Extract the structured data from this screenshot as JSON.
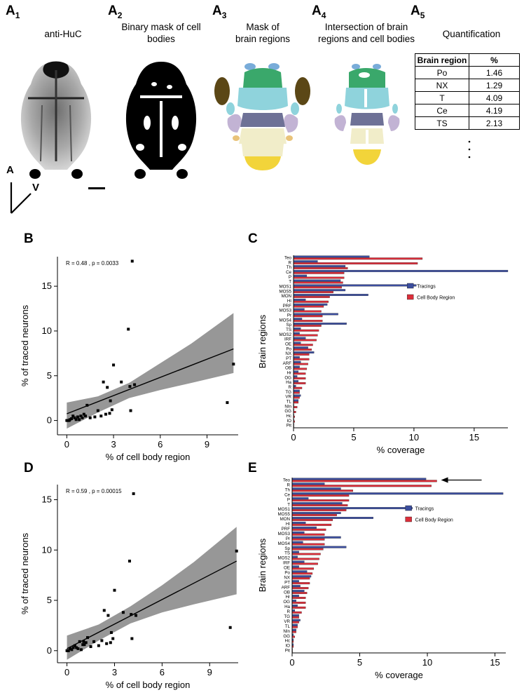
{
  "panelA": {
    "labels": [
      "A",
      "A",
      "A",
      "A",
      "A"
    ],
    "subscripts": [
      "1",
      "2",
      "3",
      "4",
      "5"
    ],
    "titles": [
      [
        "anti-HuC"
      ],
      [
        "Binary mask of cell",
        "bodies"
      ],
      [
        "Mask of",
        "brain regions"
      ],
      [
        "Intersection of brain",
        "regions and cell bodies"
      ],
      [
        "Quantification"
      ]
    ],
    "axis_labels": {
      "anterior": "A",
      "ventral": "V"
    },
    "table": {
      "headers": [
        "Brain region",
        "%"
      ],
      "rows": [
        [
          "Po",
          "1.46"
        ],
        [
          "NX",
          "1.29"
        ],
        [
          "T",
          "4.09"
        ],
        [
          "Ce",
          "4.19"
        ],
        [
          "TS",
          "2.13"
        ]
      ]
    },
    "colors": {
      "green": "#3aa86b",
      "cyan": "#8fd3dc",
      "blue": "#79acd9",
      "navy": "#6e7196",
      "lavender": "#c2b3d4",
      "yellow": "#f2d43a",
      "cream": "#f1edc9",
      "brown": "#5b4716",
      "orange": "#e9c37a"
    }
  },
  "panelB": {
    "label": "B",
    "chart_data": {
      "type": "scatter",
      "title": "",
      "annotation": "R = 0.48 , p = 0.0033",
      "xlabel": "% of cell body region",
      "ylabel": "% of traced neurons",
      "xlim": [
        -0.6,
        11.0
      ],
      "ylim": [
        -1.6,
        18.3
      ],
      "xticks": [
        0,
        3,
        6,
        9
      ],
      "yticks": [
        0,
        5,
        10,
        15
      ],
      "x": [
        0.0,
        0.05,
        0.1,
        0.15,
        0.2,
        0.3,
        0.4,
        0.5,
        0.6,
        0.7,
        0.8,
        0.9,
        1.0,
        1.1,
        1.2,
        1.3,
        1.5,
        1.8,
        2.0,
        2.2,
        2.35,
        2.5,
        2.6,
        2.75,
        2.8,
        2.9,
        3.0,
        3.5,
        3.95,
        4.05,
        4.1,
        4.2,
        4.35,
        10.3,
        10.7
      ],
      "y": [
        0.0,
        0.0,
        0.0,
        0.0,
        0.1,
        0.2,
        0.5,
        0.3,
        0.1,
        0.4,
        0.1,
        0.5,
        0.3,
        0.7,
        0.5,
        1.7,
        0.3,
        0.4,
        1.1,
        0.5,
        4.3,
        0.7,
        3.7,
        0.8,
        2.2,
        1.2,
        6.2,
        4.3,
        10.2,
        3.8,
        1.1,
        17.8,
        4.0,
        2.0,
        6.3
      ],
      "fit": {
        "x": [
          0,
          10.7
        ],
        "y": [
          0.75,
          8.0
        ]
      },
      "ci_upper": {
        "x": [
          0,
          2,
          4,
          6,
          8,
          10.7
        ],
        "y": [
          2.0,
          2.7,
          4.2,
          6.4,
          8.6,
          12.0
        ]
      },
      "ci_lower": {
        "x": [
          0,
          2,
          4,
          6,
          8,
          10.7
        ],
        "y": [
          -0.9,
          0.9,
          2.5,
          3.4,
          4.2,
          5.3
        ]
      }
    }
  },
  "panelC": {
    "label": "C",
    "chart_data": {
      "type": "bar",
      "orientation": "horizontal",
      "xlabel": "% coverage",
      "ylabel": "Brain regions",
      "xlim": [
        0,
        17.8
      ],
      "xticks": [
        0,
        5,
        10,
        15
      ],
      "categories": [
        "Teo",
        "R",
        "Th",
        "Ce",
        "P",
        "T",
        "MOS1",
        "MOS5",
        "MON",
        "HI",
        "PRF",
        "MOS3",
        "Pr",
        "MOS4",
        "Sp",
        "TS",
        "MOS2",
        "IRF",
        "OE",
        "Po",
        "NX",
        "PT",
        "ARF",
        "OB",
        "Hr",
        "OG",
        "Ha",
        "R",
        "TG",
        "VR",
        "TL",
        "NIn",
        "GG",
        "Hc",
        "IO",
        "Pit"
      ],
      "series": [
        {
          "name": "Tracings",
          "color": "#3c4e9e",
          "values": [
            6.3,
            2.0,
            4.3,
            17.8,
            1.1,
            3.9,
            10.2,
            4.3,
            6.2,
            1.0,
            2.8,
            0.9,
            3.7,
            0.7,
            4.4,
            0.6,
            0.5,
            1.0,
            0.6,
            1.2,
            1.7,
            0.5,
            0.6,
            0.5,
            0.4,
            0.3,
            0.4,
            0.2,
            0.5,
            0.6,
            0.4,
            0.0,
            0.0,
            0.0,
            0.0,
            0.0
          ]
        },
        {
          "name": "Cell Body Region",
          "color": "#dc2e3a",
          "values": [
            10.7,
            10.3,
            4.5,
            4.2,
            4.2,
            4.1,
            4.0,
            3.3,
            3.0,
            2.9,
            2.5,
            2.3,
            2.4,
            2.4,
            2.3,
            2.1,
            2.0,
            1.9,
            1.6,
            1.5,
            1.3,
            1.3,
            1.2,
            1.1,
            1.0,
            1.0,
            1.0,
            0.7,
            0.5,
            0.5,
            0.4,
            0.3,
            0.2,
            0.1,
            0.1,
            0.0
          ]
        }
      ],
      "legend": "top-right"
    }
  },
  "panelD": {
    "label": "D",
    "chart_data": {
      "type": "scatter",
      "title": "",
      "annotation": "R = 0.59 , p = 0.00015",
      "xlabel": "% of cell body region",
      "ylabel": "% of traced neurons",
      "xlim": [
        -0.6,
        10.8
      ],
      "ylim": [
        -1.2,
        16.5
      ],
      "xticks": [
        0,
        3,
        6,
        9
      ],
      "yticks": [
        0,
        5,
        10,
        15
      ],
      "x": [
        0.0,
        0.05,
        0.1,
        0.2,
        0.3,
        0.4,
        0.5,
        0.6,
        0.7,
        0.8,
        0.9,
        1.0,
        1.05,
        1.1,
        1.2,
        1.3,
        1.5,
        1.7,
        2.0,
        2.2,
        2.35,
        2.5,
        2.6,
        2.75,
        2.8,
        2.9,
        3.0,
        3.55,
        3.95,
        4.05,
        4.1,
        4.2,
        4.35,
        10.3,
        10.7
      ],
      "y": [
        0.0,
        0.0,
        0.0,
        0.2,
        0.1,
        0.3,
        0.5,
        0.3,
        0.2,
        0.9,
        0.1,
        0.6,
        0.9,
        0.6,
        0.8,
        1.3,
        0.4,
        0.9,
        0.5,
        1.0,
        4.0,
        0.7,
        3.5,
        0.8,
        1.8,
        1.2,
        6.0,
        3.8,
        8.9,
        3.6,
        1.2,
        15.6,
        3.5,
        2.3,
        9.9
      ],
      "fit": {
        "x": [
          0,
          10.7
        ],
        "y": [
          0.2,
          8.9
        ]
      },
      "ci_upper": {
        "x": [
          0,
          2,
          4,
          6,
          8,
          10.7
        ],
        "y": [
          1.5,
          2.6,
          4.4,
          6.5,
          8.8,
          12.3
        ]
      },
      "ci_lower": {
        "x": [
          0,
          2,
          4,
          6,
          8,
          10.7
        ],
        "y": [
          -0.9,
          1.0,
          2.7,
          3.8,
          4.6,
          5.6
        ]
      }
    }
  },
  "panelE": {
    "label": "E",
    "chart_data": {
      "type": "bar",
      "orientation": "horizontal",
      "xlabel": "% coverage",
      "ylabel": "Brain regions",
      "xlim": [
        0,
        15.8
      ],
      "xticks": [
        0,
        5,
        10,
        15
      ],
      "categories": [
        "Teo",
        "R",
        "Th",
        "Ce",
        "P",
        "T",
        "MOS1",
        "MOS5",
        "MON",
        "HI",
        "PRF",
        "MOS3",
        "Pr",
        "MOS4",
        "Sp",
        "TS",
        "MOS2",
        "IRF",
        "OE",
        "Po",
        "NX",
        "PT",
        "ARF",
        "OB",
        "Hr",
        "OG",
        "Ha",
        "R",
        "TG",
        "VR",
        "TL",
        "NIn",
        "GG",
        "Hc",
        "IO",
        "Pit"
      ],
      "series": [
        {
          "name": "Tracings",
          "color": "#3c4e9e",
          "values": [
            9.9,
            2.4,
            3.6,
            15.6,
            1.2,
            3.7,
            8.9,
            3.6,
            6.0,
            1.0,
            1.8,
            0.9,
            3.6,
            0.8,
            4.0,
            0.5,
            0.4,
            0.9,
            0.5,
            1.1,
            1.4,
            0.5,
            0.6,
            0.9,
            0.5,
            0.3,
            0.4,
            0.2,
            0.5,
            0.6,
            0.4,
            0.3,
            0.1,
            0.1,
            0.1,
            0.0
          ]
        },
        {
          "name": "Cell Body Region",
          "color": "#dc2e3a",
          "values": [
            10.7,
            10.3,
            4.5,
            4.2,
            4.2,
            4.1,
            4.0,
            3.3,
            3.0,
            2.9,
            2.5,
            2.4,
            2.4,
            2.4,
            2.3,
            2.1,
            2.0,
            1.9,
            1.6,
            1.5,
            1.3,
            1.3,
            1.2,
            1.1,
            1.0,
            1.0,
            1.0,
            0.7,
            0.5,
            0.5,
            0.4,
            0.3,
            0.2,
            0.1,
            0.1,
            0.0
          ]
        }
      ],
      "legend": "top-right"
    }
  }
}
